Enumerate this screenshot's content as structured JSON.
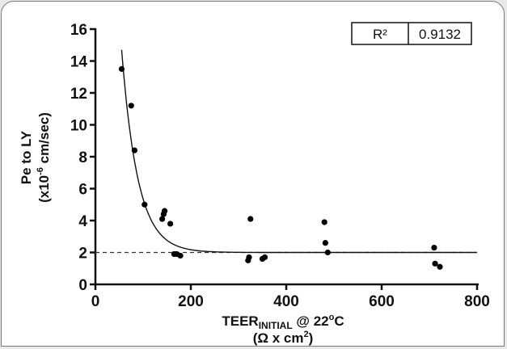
{
  "chart_data": {
    "type": "scatter",
    "title": "",
    "xlabel": {
      "prefix": "TEER",
      "subscript": "INITIAL",
      "suffix": " @ 22",
      "superscript": "o",
      "unit": "C",
      "line2_prefix": "(Ω x cm",
      "line2_superscript": "2",
      "line2_suffix": ")"
    },
    "ylabel": {
      "line1": "Pe to LY",
      "line2_prefix": "(x10",
      "line2_superscript": "-6",
      "line2_suffix": " cm/sec)"
    },
    "xlim": [
      0,
      800
    ],
    "ylim": [
      0,
      16
    ],
    "xticks": [
      "0",
      "200",
      "400",
      "600",
      "800"
    ],
    "yticks": [
      "0",
      "2",
      "4",
      "6",
      "8",
      "10",
      "12",
      "14",
      "16"
    ],
    "points": [
      {
        "x": 55,
        "y": 13.5
      },
      {
        "x": 75,
        "y": 11.2
      },
      {
        "x": 82,
        "y": 8.4
      },
      {
        "x": 103,
        "y": 5.0
      },
      {
        "x": 140,
        "y": 4.1
      },
      {
        "x": 143,
        "y": 4.4
      },
      {
        "x": 145,
        "y": 4.6
      },
      {
        "x": 157,
        "y": 3.8
      },
      {
        "x": 165,
        "y": 1.9
      },
      {
        "x": 170,
        "y": 1.9
      },
      {
        "x": 178,
        "y": 1.8
      },
      {
        "x": 320,
        "y": 1.5
      },
      {
        "x": 322,
        "y": 1.7
      },
      {
        "x": 325,
        "y": 4.1
      },
      {
        "x": 350,
        "y": 1.6
      },
      {
        "x": 355,
        "y": 1.7
      },
      {
        "x": 480,
        "y": 3.9
      },
      {
        "x": 482,
        "y": 2.6
      },
      {
        "x": 487,
        "y": 2.0
      },
      {
        "x": 710,
        "y": 2.3
      },
      {
        "x": 712,
        "y": 1.3
      },
      {
        "x": 722,
        "y": 1.1
      }
    ],
    "fit_curve": {
      "type": "exponential-decay",
      "plateau": 2.0,
      "y_at_x55": 14.7,
      "rate": 0.0296
    },
    "reference_line": {
      "y": 2.0,
      "style": "dashed"
    },
    "stats": {
      "label": "R²",
      "value": "0.9132"
    },
    "grid": false
  }
}
